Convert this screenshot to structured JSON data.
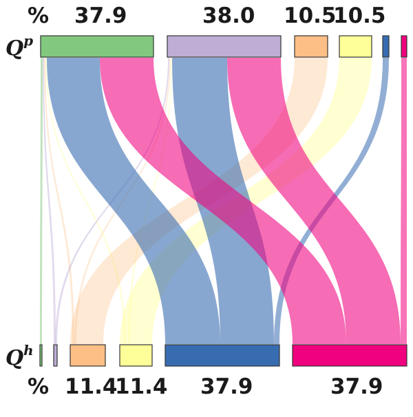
{
  "top_row": {
    "label_main": "Q",
    "label_sup": "p",
    "percent_symbol": "%",
    "values": [
      "37.9",
      "38.0",
      "10.5",
      "10.5"
    ],
    "nodes": [
      {
        "name": "green",
        "color": "#82c87e"
      },
      {
        "name": "lavender",
        "color": "#bfadd6"
      },
      {
        "name": "orange",
        "color": "#fdbf86"
      },
      {
        "name": "yellow",
        "color": "#ffff99"
      },
      {
        "name": "blue",
        "color": "#386cb0"
      },
      {
        "name": "pink",
        "color": "#f0027f"
      }
    ]
  },
  "bottom_row": {
    "label_main": "Q",
    "label_sup": "h",
    "percent_symbol": "%",
    "values": [
      "11.4",
      "11.4",
      "37.9",
      "37.9"
    ],
    "nodes": [
      {
        "name": "green",
        "color": "#82c87e"
      },
      {
        "name": "lavender",
        "color": "#bfadd6"
      },
      {
        "name": "orange",
        "color": "#fdbf86"
      },
      {
        "name": "yellow",
        "color": "#ffff99"
      },
      {
        "name": "blue",
        "color": "#386cb0"
      },
      {
        "name": "pink",
        "color": "#f0027f"
      }
    ]
  },
  "flow_colors": {
    "blue": "#386cb0",
    "pink": "#f0027f",
    "orange": "#fdbf86",
    "yellow": "#ffff99",
    "green": "#82c87e",
    "lavender": "#bfadd6"
  }
}
